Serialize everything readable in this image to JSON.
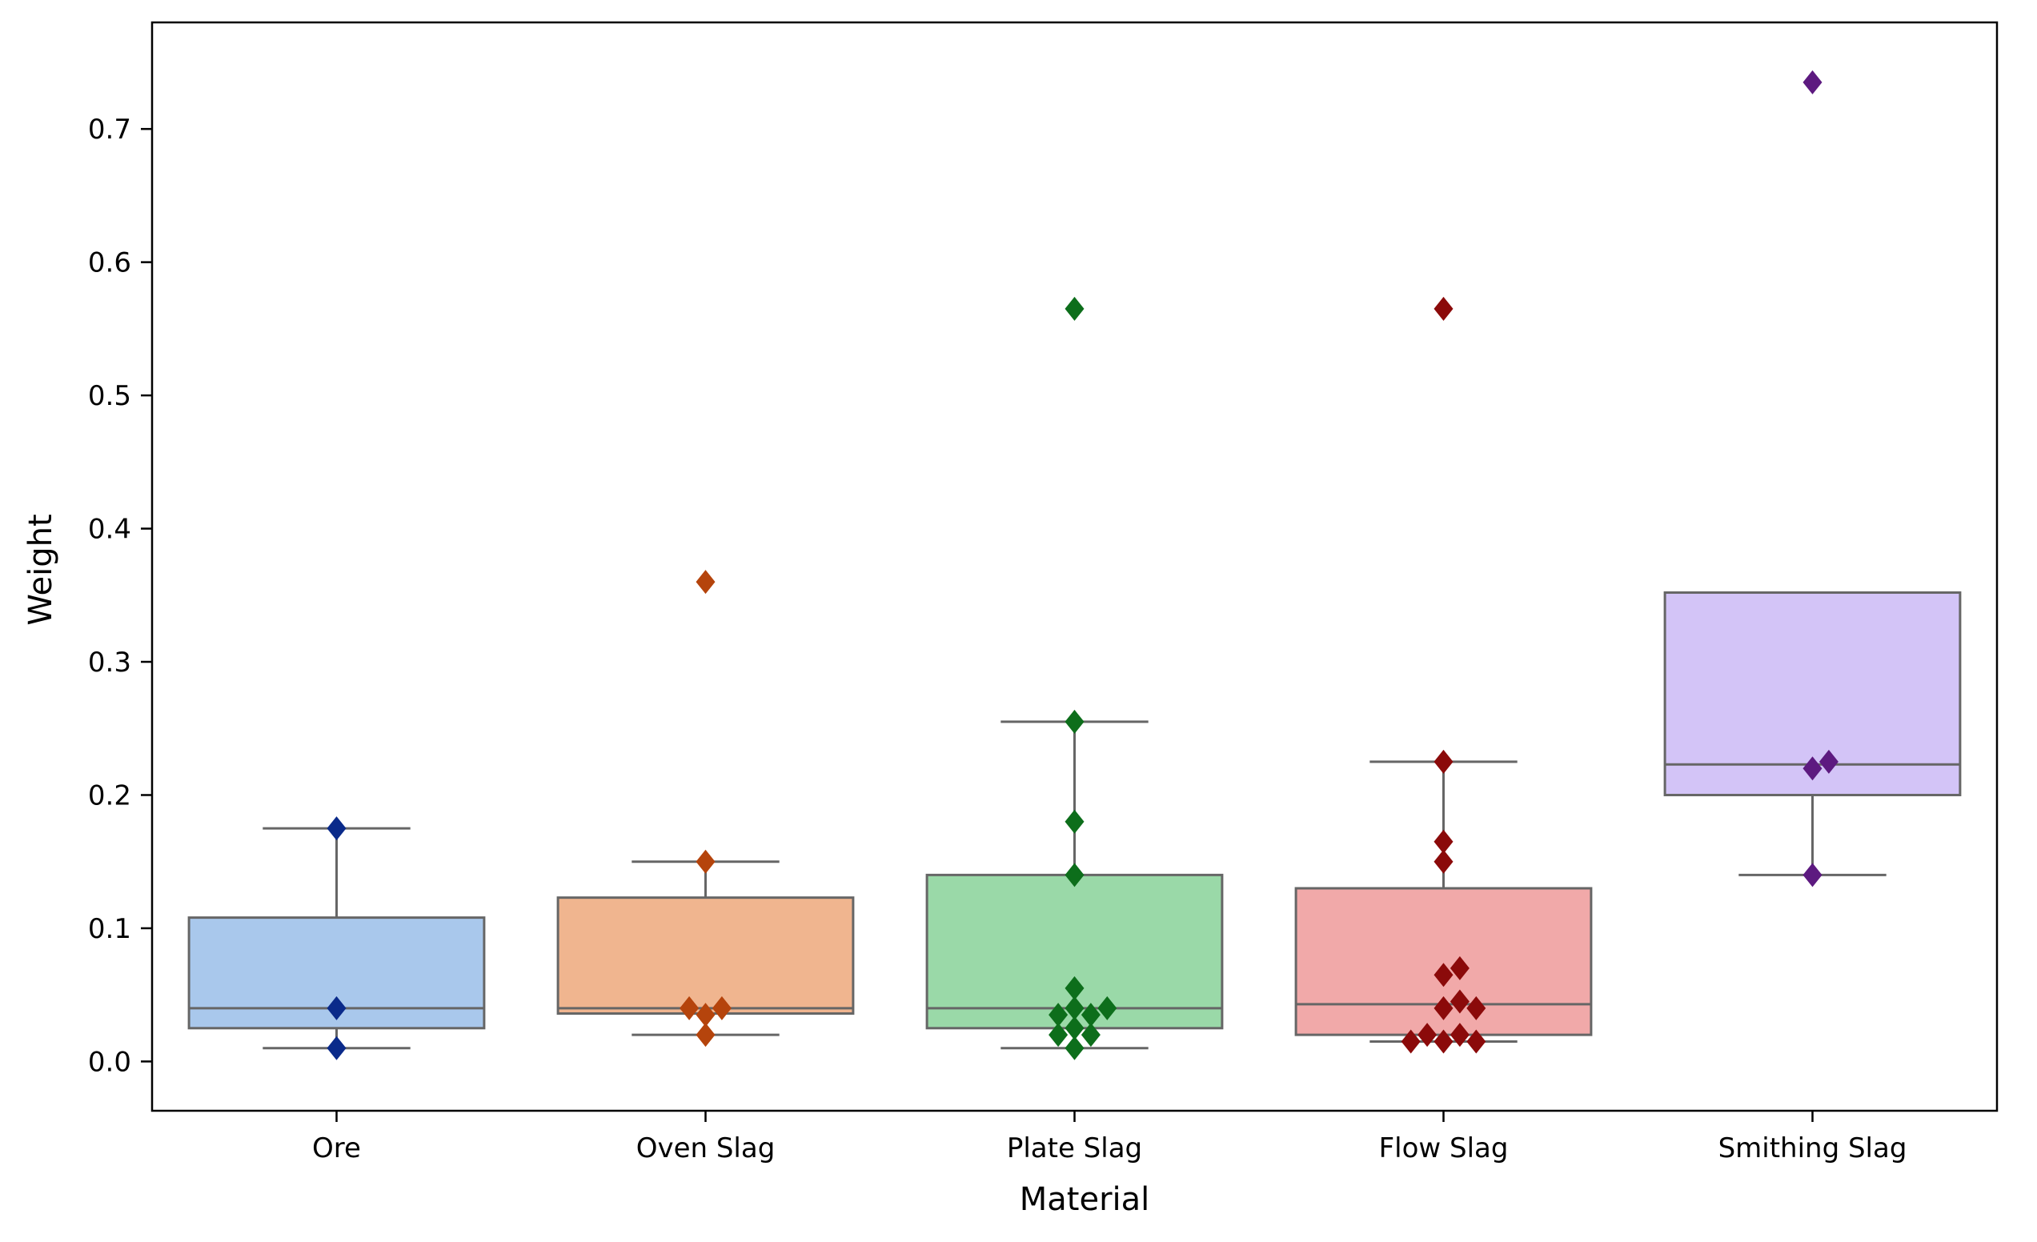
{
  "chart_data": {
    "type": "box",
    "title": "",
    "xlabel": "Material",
    "ylabel": "Weight",
    "ylim": [
      -0.037,
      0.78
    ],
    "yticks": [
      0.0,
      0.1,
      0.2,
      0.3,
      0.4,
      0.5,
      0.6,
      0.7
    ],
    "ytick_labels": [
      "0.0",
      "0.1",
      "0.2",
      "0.3",
      "0.4",
      "0.5",
      "0.6",
      "0.7"
    ],
    "categories": [
      "Ore",
      "Oven Slag",
      "Plate Slag",
      "Flow Slag",
      "Smithing Slag"
    ],
    "grid": false,
    "legend": "none",
    "series": [
      {
        "category": "Ore",
        "box_color": "#a9c8ec",
        "point_color": "#0a2a8a",
        "q1": 0.025,
        "median": 0.04,
        "q3": 0.108,
        "whisker_low": 0.01,
        "whisker_high": 0.175,
        "points": [
          0.175,
          0.04,
          0.01
        ]
      },
      {
        "category": "Oven Slag",
        "box_color": "#f0b58f",
        "point_color": "#b5440c",
        "q1": 0.036,
        "median": 0.04,
        "q3": 0.123,
        "whisker_low": 0.02,
        "whisker_high": 0.15,
        "points": [
          0.36,
          0.15,
          0.04,
          0.04,
          0.035,
          0.02
        ]
      },
      {
        "category": "Plate Slag",
        "box_color": "#9ad9a8",
        "point_color": "#0d6e1b",
        "q1": 0.025,
        "median": 0.04,
        "q3": 0.14,
        "whisker_low": 0.01,
        "whisker_high": 0.255,
        "points": [
          0.565,
          0.255,
          0.18,
          0.14,
          0.055,
          0.04,
          0.04,
          0.035,
          0.035,
          0.025,
          0.02,
          0.02,
          0.01
        ]
      },
      {
        "category": "Flow Slag",
        "box_color": "#f1a9a9",
        "point_color": "#8b0a0a",
        "q1": 0.02,
        "median": 0.043,
        "q3": 0.13,
        "whisker_low": 0.015,
        "whisker_high": 0.225,
        "points": [
          0.565,
          0.225,
          0.165,
          0.15,
          0.07,
          0.065,
          0.045,
          0.04,
          0.04,
          0.02,
          0.02,
          0.015,
          0.015,
          0.015
        ]
      },
      {
        "category": "Smithing Slag",
        "box_color": "#d3c4f7",
        "point_color": "#5d1a80",
        "q1": 0.2,
        "median": 0.223,
        "q3": 0.352,
        "whisker_low": 0.14,
        "whisker_high": 0.352,
        "points": [
          0.735,
          0.225,
          0.22,
          0.14
        ]
      }
    ]
  }
}
